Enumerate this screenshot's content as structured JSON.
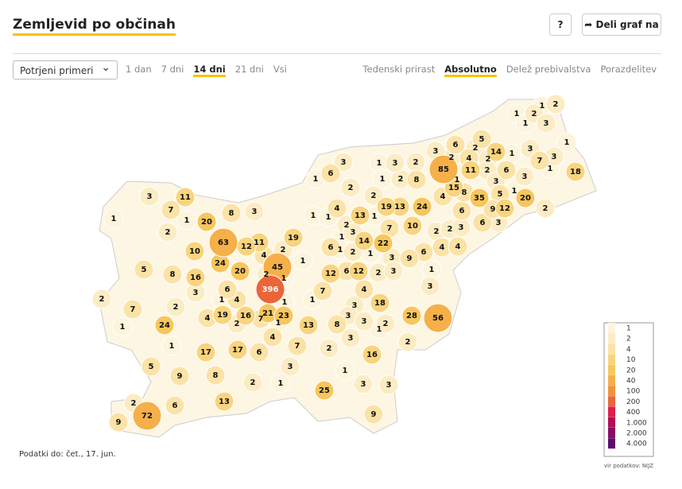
{
  "header": {
    "title": "Zemljevid po občinah",
    "help": "?",
    "share": "Deli graf na"
  },
  "controls": {
    "select": "Potrjeni primeri",
    "periods": [
      "1 dan",
      "7 dni",
      "14 dni",
      "21 dni",
      "Vsi"
    ],
    "active_period": 2,
    "views": [
      "Tedenski prirast",
      "Absolutno",
      "Delež prebivalstva",
      "Porazdelitev"
    ],
    "active_view": 1
  },
  "chart_data": {
    "type": "choropleth",
    "values": [
      1,
      2,
      1,
      2,
      1,
      3,
      1,
      3,
      6,
      5,
      2,
      14,
      1,
      3,
      2,
      4,
      2,
      85,
      11,
      2,
      6,
      3,
      7,
      3,
      1,
      18,
      1,
      3,
      15,
      8,
      35,
      5,
      1,
      20,
      9,
      12,
      2,
      3,
      6,
      1,
      1,
      3,
      2,
      1,
      2,
      8,
      2,
      2,
      19,
      13,
      24,
      4,
      6,
      4,
      13,
      1,
      1,
      1,
      2,
      7,
      10,
      2,
      2,
      3,
      6,
      3,
      1,
      3,
      14,
      22,
      6,
      1,
      2,
      1,
      3,
      9,
      6,
      4,
      4,
      12,
      6,
      12,
      2,
      3,
      1,
      3,
      4,
      18,
      3,
      3,
      28,
      56,
      8,
      3,
      2,
      1,
      3,
      2,
      2,
      16,
      1,
      3,
      3,
      25,
      9,
      3,
      11,
      7,
      1,
      20,
      8,
      3,
      1,
      2,
      19,
      63,
      12,
      11,
      10,
      4,
      2,
      1,
      24,
      45,
      5,
      8,
      16,
      20,
      2,
      1,
      6,
      396,
      3,
      1,
      4,
      1,
      7,
      1,
      2,
      7,
      2,
      19,
      16,
      21,
      4,
      2,
      7,
      1,
      23,
      13,
      1,
      24,
      4,
      1,
      17,
      17,
      6,
      7,
      5,
      9,
      8,
      2,
      3,
      1,
      13,
      2,
      6,
      72,
      9
    ],
    "legend": {
      "breaks": [
        1,
        2,
        4,
        10,
        20,
        40,
        100,
        200,
        400,
        {
          "value": 1000,
          "label": "1.000"
        },
        {
          "value": 2000,
          "label": "2.000"
        },
        {
          "value": 4000,
          "label": "4.000"
        }
      ],
      "colors": [
        "#fdf4dc",
        "#fcecc4",
        "#fbe2a6",
        "#f9d47f",
        "#f7c65c",
        "#f5b049",
        "#f3923b",
        "#ec6439",
        "#e01d4b",
        "#b50d58",
        "#8a0c66",
        "#5c0d6e"
      ]
    },
    "footnote": "Podatki do: čet., 17. jun.",
    "source": "vir podatkov: NIJZ"
  }
}
